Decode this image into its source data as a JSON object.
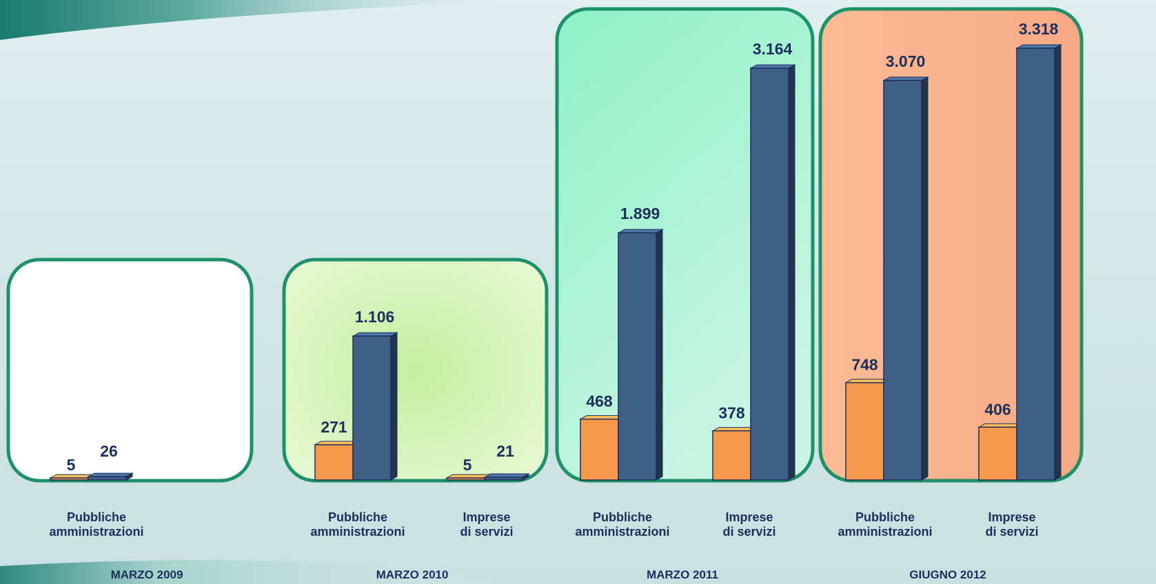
{
  "chart_data": {
    "type": "bar",
    "groups": [
      {
        "label": "MARZO 2009",
        "bars": [
          {
            "category": "Pubbliche\namministrazioni",
            "values": [
              5,
              26
            ]
          }
        ]
      },
      {
        "label": "MARZO 2010",
        "bars": [
          {
            "category": "Pubbliche\namministrazioni",
            "values": [
              271,
              1106
            ]
          },
          {
            "category": "Imprese\ndi servizi",
            "values": [
              5,
              21
            ]
          }
        ]
      },
      {
        "label": "MARZO 2011",
        "bars": [
          {
            "category": "Pubbliche\namministrazioni",
            "values": [
              468,
              1899
            ]
          },
          {
            "category": "Imprese\ndi servizi",
            "values": [
              378,
              3164
            ]
          }
        ]
      },
      {
        "label": "GIUGNO 2012",
        "bars": [
          {
            "category": "Pubbliche\namministrazioni",
            "values": [
              748,
              3070
            ]
          },
          {
            "category": "Imprese\ndi servizi",
            "values": [
              406,
              3318
            ]
          }
        ]
      }
    ],
    "value_labels": {
      "0": [
        "5",
        "26"
      ],
      "1": [
        "271",
        "1.106",
        "5",
        "21"
      ],
      "2": [
        "468",
        "1.899",
        "378",
        "3.164"
      ],
      "3": [
        "748",
        "3.070",
        "406",
        "3.318"
      ]
    },
    "ylim": [
      0,
      3318
    ],
    "grid": false,
    "legend": "none"
  },
  "colors": {
    "orange": "#f7994a",
    "navy": "#3e5f86",
    "panel_border": "#1f9169",
    "text": "#1c2f5c",
    "panel_2009": "#ffffff",
    "panel_2010": "#c8f0a8",
    "panel_2011": "#9ff2cd",
    "panel_2012": "#fbb590"
  }
}
